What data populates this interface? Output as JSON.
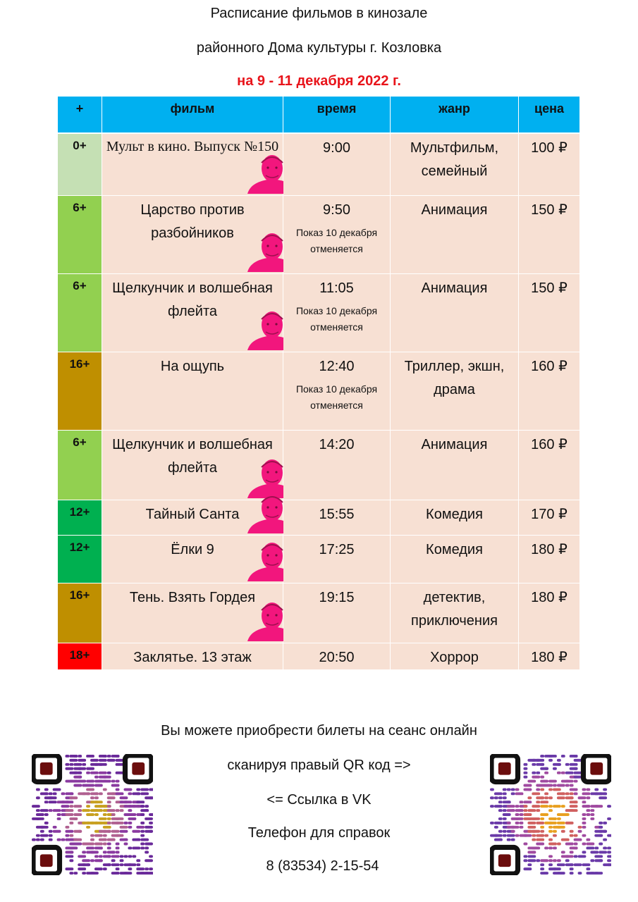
{
  "header": {
    "line1": "Расписание фильмов в кинозале",
    "line2": "районного Дома культуры г. Козловка",
    "dates": "на 9 - 11 декабря 2022 г."
  },
  "table": {
    "columns": [
      "+",
      "фильм",
      "время",
      "жанр",
      "цена"
    ],
    "rows": [
      {
        "age": "0+",
        "age_color": "#c5e0b4",
        "film": "Мульт в кино. Выпуск №150",
        "time": "9:00",
        "genre": "Мультфильм, семейный",
        "price": "100 ₽",
        "pushkin_card": true
      },
      {
        "age": "6+",
        "age_color": "#92d050",
        "film": "Царство против разбойников",
        "time": "9:50",
        "note": "Показ 10 декабря отменяется",
        "genre": "Анимация",
        "price": "150 ₽",
        "pushkin_card": true
      },
      {
        "age": "6+",
        "age_color": "#92d050",
        "film": "Щелкунчик и волшебная флейта",
        "time": "11:05",
        "note": "Показ 10 декабря отменяется",
        "genre": "Анимация",
        "price": "150 ₽",
        "pushkin_card": true
      },
      {
        "age": "16+",
        "age_color": "#bf8f00",
        "film": "На ощупь",
        "time": "12:40",
        "note": "Показ 10 декабря отменяется",
        "genre": "Триллер, экшн, драма",
        "price": "160 ₽",
        "pushkin_card": false
      },
      {
        "age": "6+",
        "age_color": "#92d050",
        "film": "Щелкунчик и волшебная флейта",
        "time": "14:20",
        "genre": "Анимация",
        "price": "160 ₽",
        "pushkin_card": true
      },
      {
        "age": "12+",
        "age_color": "#00b050",
        "film": "Тайный Санта",
        "time": "15:55",
        "genre": "Комедия",
        "price": "170 ₽",
        "pushkin_card": true
      },
      {
        "age": "12+",
        "age_color": "#00b050",
        "film": "Ёлки 9",
        "time": "17:25",
        "genre": "Комедия",
        "price": "180 ₽",
        "pushkin_card": true
      },
      {
        "age": "16+",
        "age_color": "#bf8f00",
        "film": "Тень. Взять Гордея",
        "time": "19:15",
        "genre": "детектив, приключения",
        "price": "180 ₽",
        "pushkin_card": true
      },
      {
        "age": "18+",
        "age_color": "#ff0000",
        "film": "Заклятье. 13 этаж",
        "time": "20:50",
        "genre": "Хоррор",
        "price": "180 ₽",
        "pushkin_card": false
      }
    ]
  },
  "footer": {
    "line1": "Вы можете приобрести билеты на сеанс онлайн",
    "line2": "сканируя правый QR код =>",
    "line3": "<= Ссылка в VK",
    "line4": "Телефон для справок",
    "phone": "8 (83534) 2-15-54"
  }
}
